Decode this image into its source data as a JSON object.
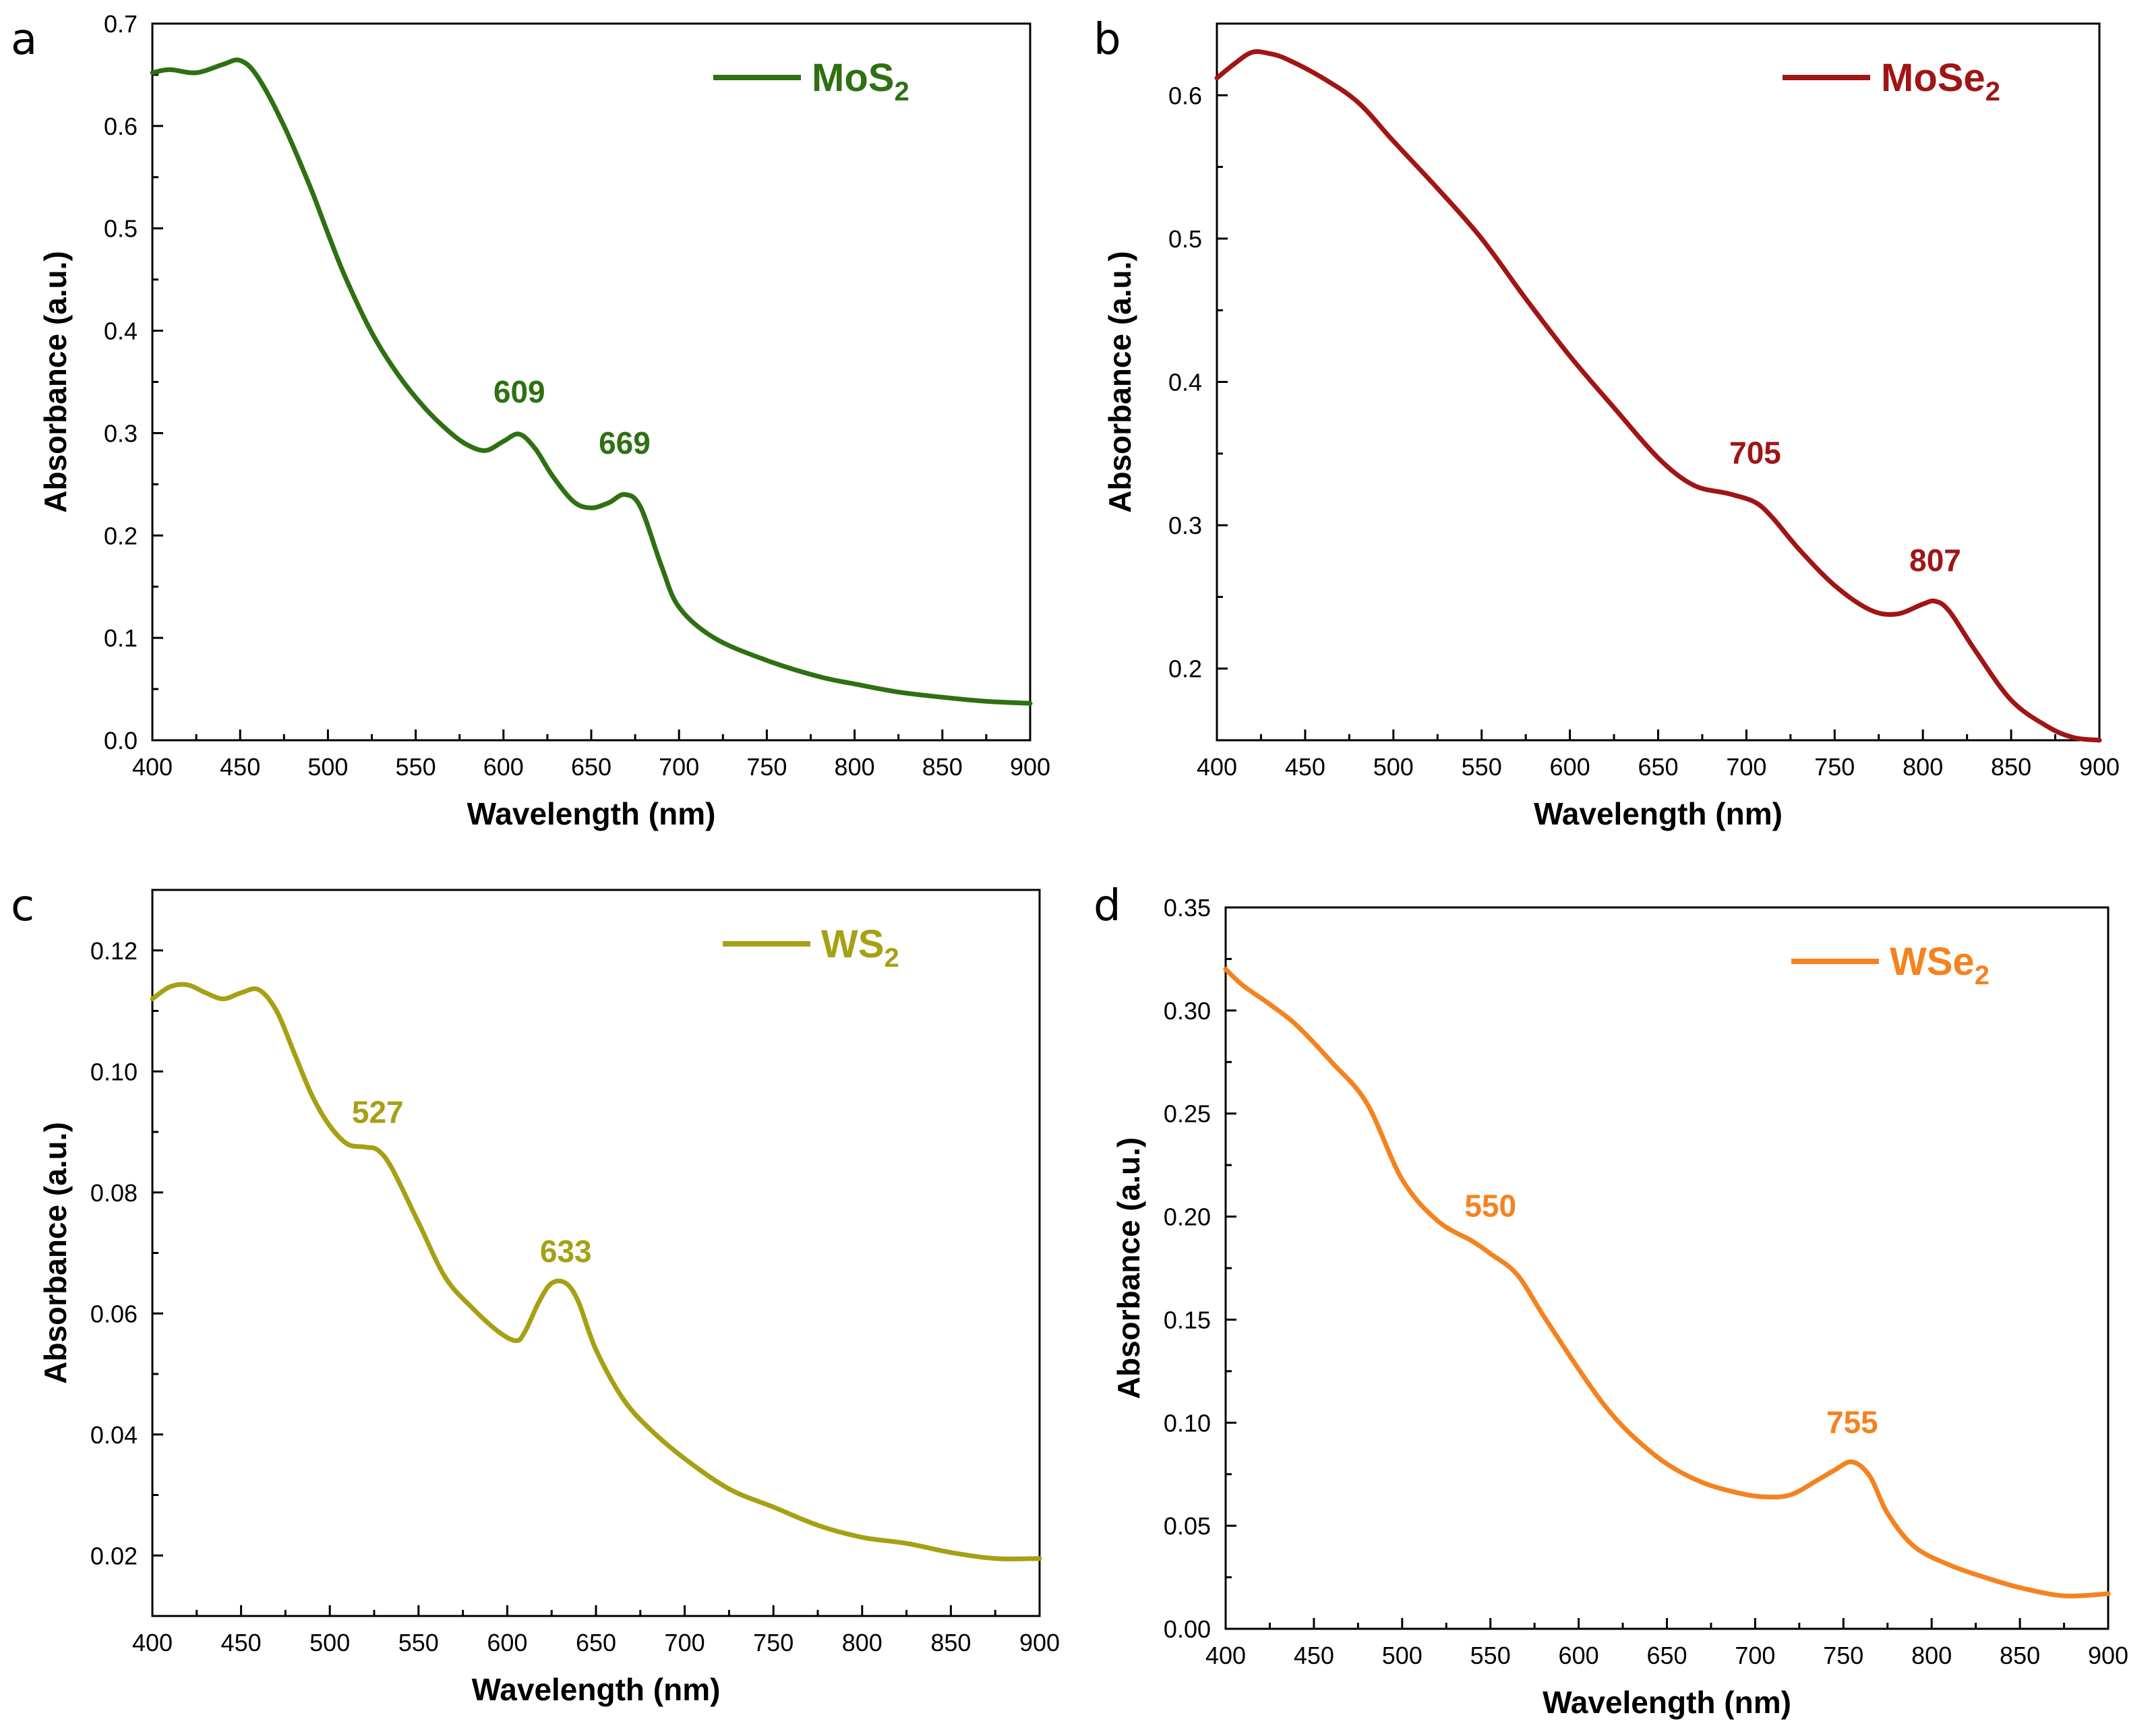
{
  "chart_data": [
    {
      "type": "line",
      "panel": "a",
      "xlabel": "Wavelength (nm)",
      "ylabel": "Absorbance (a.u.)",
      "xlim": [
        400,
        900
      ],
      "ylim": [
        0.0,
        0.7
      ],
      "xticks": [
        "400",
        "450",
        "500",
        "550",
        "600",
        "650",
        "700",
        "750",
        "800",
        "850",
        "900"
      ],
      "yticks": [
        "0.0",
        "0.1",
        "0.2",
        "0.3",
        "0.4",
        "0.5",
        "0.6",
        "0.7"
      ],
      "color": "#2E7012",
      "legend": "top-right",
      "series": [
        {
          "name_main": "MoS",
          "name_sub": "2",
          "x": [
            400,
            410,
            425,
            440,
            450,
            460,
            475,
            490,
            500,
            510,
            525,
            540,
            555,
            570,
            580,
            590,
            600,
            609,
            618,
            628,
            640,
            650,
            660,
            669,
            678,
            690,
            700,
            720,
            750,
            780,
            800,
            825,
            850,
            875,
            900
          ],
          "y": [
            0.652,
            0.655,
            0.652,
            0.66,
            0.664,
            0.648,
            0.6,
            0.54,
            0.495,
            0.452,
            0.398,
            0.357,
            0.325,
            0.3,
            0.288,
            0.283,
            0.292,
            0.299,
            0.285,
            0.258,
            0.233,
            0.227,
            0.232,
            0.24,
            0.228,
            0.17,
            0.13,
            0.1,
            0.078,
            0.062,
            0.055,
            0.047,
            0.042,
            0.038,
            0.036
          ]
        }
      ],
      "annotations": [
        {
          "text": "609",
          "x": 609,
          "y": 0.33
        },
        {
          "text": "669",
          "x": 669,
          "y": 0.28
        }
      ]
    },
    {
      "type": "line",
      "panel": "b",
      "xlabel": "Wavelength (nm)",
      "ylabel": "Absorbance (a.u.)",
      "xlim": [
        400,
        900
      ],
      "ylim": [
        0.15,
        0.65
      ],
      "xticks": [
        "400",
        "450",
        "500",
        "550",
        "600",
        "650",
        "700",
        "750",
        "800",
        "850",
        "900"
      ],
      "yticks": [
        "0.2",
        "0.3",
        "0.4",
        "0.5",
        "0.6"
      ],
      "ytick_values": [
        0.2,
        0.3,
        0.4,
        0.5,
        0.6
      ],
      "color": "#A01515",
      "legend": "top-right",
      "series": [
        {
          "name_main": "MoSe",
          "name_sub": "2",
          "x": [
            400,
            410,
            420,
            430,
            440,
            460,
            480,
            500,
            525,
            550,
            575,
            600,
            625,
            650,
            670,
            690,
            705,
            715,
            730,
            750,
            770,
            785,
            800,
            807,
            815,
            830,
            850,
            870,
            885,
            900
          ],
          "y": [
            0.612,
            0.622,
            0.63,
            0.629,
            0.625,
            0.612,
            0.595,
            0.568,
            0.535,
            0.5,
            0.458,
            0.418,
            0.382,
            0.347,
            0.328,
            0.322,
            0.316,
            0.305,
            0.283,
            0.258,
            0.241,
            0.238,
            0.245,
            0.247,
            0.24,
            0.212,
            0.178,
            0.16,
            0.152,
            0.15
          ]
        }
      ],
      "annotations": [
        {
          "text": "705",
          "x": 705,
          "y": 0.343
        },
        {
          "text": "807",
          "x": 807,
          "y": 0.268
        }
      ]
    },
    {
      "type": "line",
      "panel": "c",
      "xlabel": "Wavelength (nm)",
      "ylabel": "Absorbance (a.u.)",
      "xlim": [
        400,
        900
      ],
      "ylim": [
        0.01,
        0.13
      ],
      "xticks": [
        "400",
        "450",
        "500",
        "550",
        "600",
        "650",
        "700",
        "750",
        "800",
        "850",
        "900"
      ],
      "yticks": [
        "0.02",
        "0.04",
        "0.06",
        "0.08",
        "0.10",
        "0.12"
      ],
      "ytick_values": [
        0.02,
        0.04,
        0.06,
        0.08,
        0.1,
        0.12
      ],
      "color": "#A6A015",
      "legend": "top-right",
      "series": [
        {
          "name_main": "WS",
          "name_sub": "2",
          "x": [
            400,
            410,
            420,
            430,
            440,
            450,
            460,
            470,
            480,
            490,
            500,
            510,
            520,
            527,
            535,
            550,
            565,
            580,
            595,
            605,
            610,
            618,
            625,
            633,
            640,
            650,
            665,
            680,
            700,
            725,
            750,
            775,
            800,
            825,
            850,
            875,
            900
          ],
          "y": [
            0.112,
            0.114,
            0.1143,
            0.113,
            0.112,
            0.113,
            0.1135,
            0.11,
            0.103,
            0.096,
            0.091,
            0.088,
            0.0875,
            0.087,
            0.084,
            0.075,
            0.066,
            0.061,
            0.057,
            0.0555,
            0.057,
            0.062,
            0.065,
            0.065,
            0.062,
            0.054,
            0.046,
            0.041,
            0.036,
            0.031,
            0.028,
            0.025,
            0.023,
            0.022,
            0.0205,
            0.0195,
            0.0195
          ]
        }
      ],
      "annotations": [
        {
          "text": "527",
          "x": 527,
          "y": 0.0915
        },
        {
          "text": "633",
          "x": 633,
          "y": 0.0685
        }
      ]
    },
    {
      "type": "line",
      "panel": "d",
      "xlabel": "Wavelength (nm)",
      "ylabel": "Absorbance (a.u.)",
      "xlim": [
        400,
        900
      ],
      "ylim": [
        0.0,
        0.35
      ],
      "xticks": [
        "400",
        "450",
        "500",
        "550",
        "600",
        "650",
        "700",
        "750",
        "800",
        "850",
        "900"
      ],
      "yticks": [
        "0.00",
        "0.05",
        "0.10",
        "0.15",
        "0.20",
        "0.25",
        "0.30",
        "0.35"
      ],
      "ytick_values": [
        0.0,
        0.05,
        0.1,
        0.15,
        0.2,
        0.25,
        0.3,
        0.35
      ],
      "color": "#F58220",
      "legend": "top-right",
      "series": [
        {
          "name_main": "WSe",
          "name_sub": "2",
          "x": [
            400,
            410,
            425,
            440,
            460,
            480,
            500,
            520,
            540,
            550,
            565,
            580,
            600,
            615,
            630,
            650,
            670,
            690,
            705,
            720,
            735,
            745,
            755,
            765,
            775,
            790,
            810,
            830,
            850,
            875,
            900
          ],
          "y": [
            0.32,
            0.312,
            0.303,
            0.293,
            0.275,
            0.255,
            0.218,
            0.198,
            0.188,
            0.182,
            0.172,
            0.152,
            0.126,
            0.108,
            0.094,
            0.08,
            0.071,
            0.066,
            0.064,
            0.065,
            0.072,
            0.077,
            0.081,
            0.074,
            0.056,
            0.04,
            0.031,
            0.025,
            0.02,
            0.016,
            0.017
          ]
        }
      ],
      "annotations": [
        {
          "text": "550",
          "x": 550,
          "y": 0.2
        },
        {
          "text": "755",
          "x": 755,
          "y": 0.095
        }
      ]
    }
  ]
}
